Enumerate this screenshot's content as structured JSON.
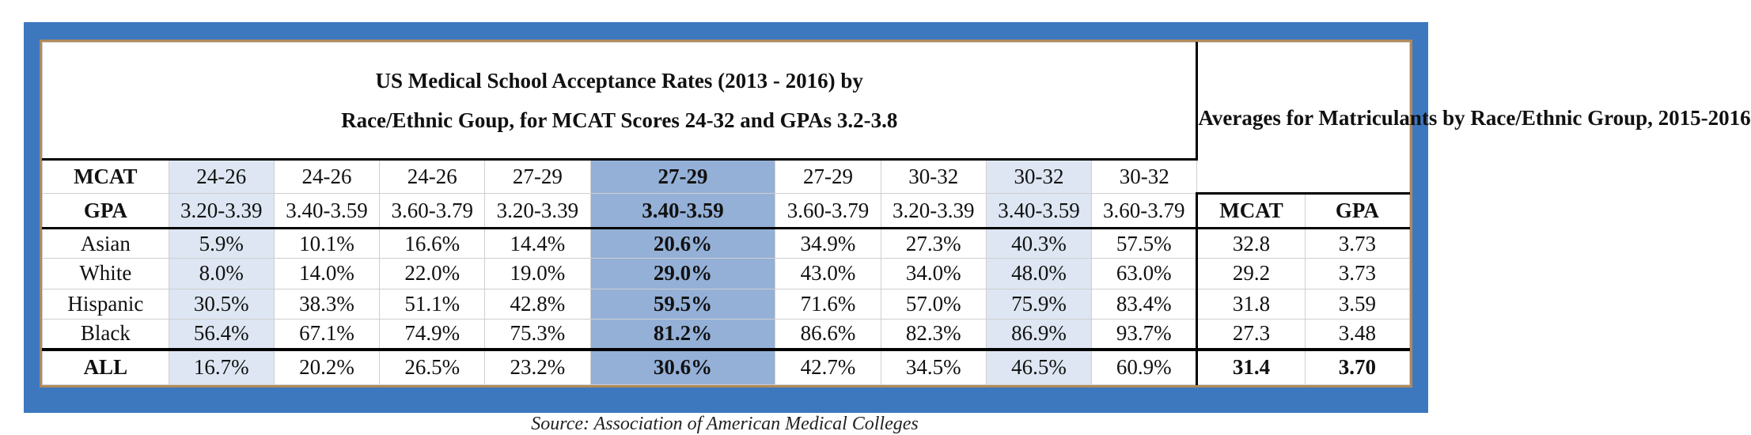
{
  "chart_data": {
    "type": "table",
    "title": "US Medical School Acceptance Rates (2013 - 2016) by Race/Ethnic Goup, for MCAT Scores 24-32 and GPAs 3.2-3.8",
    "title_line1": "US Medical School Acceptance Rates (2013 - 2016) by",
    "title_line2": "Race/Ethnic Goup, for MCAT Scores 24-32 and GPAs 3.2-3.8",
    "side_title": "Averages for Matriculants by Race/Ethnic Group, 2015-2016",
    "mcat_label": "MCAT",
    "gpa_label": "GPA",
    "mcat_ranges": [
      "24-26",
      "24-26",
      "24-26",
      "27-29",
      "27-29",
      "27-29",
      "30-32",
      "30-32",
      "30-32"
    ],
    "gpa_ranges": [
      "3.20-3.39",
      "3.40-3.59",
      "3.60-3.79",
      "3.20-3.39",
      "3.40-3.59",
      "3.60-3.79",
      "3.20-3.39",
      "3.40-3.59",
      "3.60-3.79"
    ],
    "avg_headers": [
      "MCAT",
      "GPA"
    ],
    "rows": [
      {
        "group": "Asian",
        "rates": [
          "5.9%",
          "10.1%",
          "16.6%",
          "14.4%",
          "20.6%",
          "34.9%",
          "27.3%",
          "40.3%",
          "57.5%"
        ],
        "avg": [
          "32.8",
          "3.73"
        ]
      },
      {
        "group": "White",
        "rates": [
          "8.0%",
          "14.0%",
          "22.0%",
          "19.0%",
          "29.0%",
          "43.0%",
          "34.0%",
          "48.0%",
          "63.0%"
        ],
        "avg": [
          "29.2",
          "3.73"
        ]
      },
      {
        "group": "Hispanic",
        "rates": [
          "30.5%",
          "38.3%",
          "51.1%",
          "42.8%",
          "59.5%",
          "71.6%",
          "57.0%",
          "75.9%",
          "83.4%"
        ],
        "avg": [
          "31.8",
          "3.59"
        ]
      },
      {
        "group": "Black",
        "rates": [
          "56.4%",
          "67.1%",
          "74.9%",
          "75.3%",
          "81.2%",
          "86.6%",
          "82.3%",
          "86.9%",
          "93.7%"
        ],
        "avg": [
          "27.3",
          "3.48"
        ]
      },
      {
        "group": "ALL",
        "rates": [
          "16.7%",
          "20.2%",
          "26.5%",
          "23.2%",
          "30.6%",
          "42.7%",
          "34.5%",
          "46.5%",
          "60.9%"
        ],
        "avg": [
          "31.4",
          "3.70"
        ]
      }
    ],
    "source": "Source: Association of American Medical Colleges"
  },
  "colors": {
    "frame_blue": "#3d78bf",
    "inner_border": "#b08a57",
    "highlight_light": "#dde6f2",
    "highlight_dark": "#94b0d7"
  }
}
